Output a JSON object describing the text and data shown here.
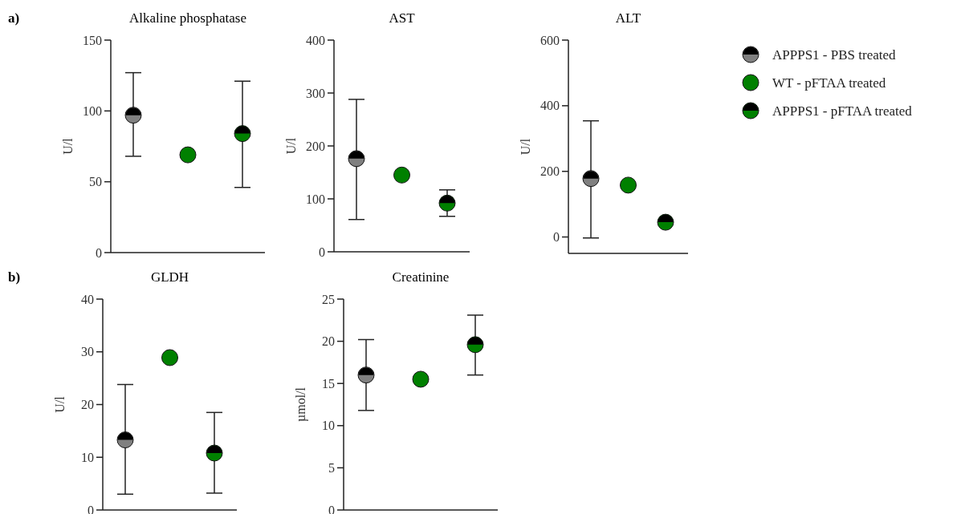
{
  "chart_data": [
    {
      "type": "scatter",
      "title": "Alkaline phosphatase",
      "ylabel": "U/l",
      "annotations": [
        "a)"
      ],
      "categories": [
        null,
        null,
        null
      ],
      "ylim": [
        0,
        150
      ],
      "yticks": [
        0,
        50,
        100,
        150
      ],
      "marker": "circle",
      "legend": false,
      "series": [
        {
          "color": "#808080",
          "values": [
            97,
            null,
            null
          ],
          "errors": [
            [
              68,
              127
            ],
            null,
            null
          ]
        },
        {
          "color": "#008000",
          "values": [
            null,
            69,
            null
          ]
        },
        {
          "color": "#008000",
          "values": [
            null,
            null,
            84
          ],
          "errors": [
            null,
            null,
            [
              46,
              121
            ]
          ]
        }
      ]
    },
    {
      "type": "scatter",
      "title": "AST",
      "ylabel": "U/l",
      "categories": [
        null,
        null,
        null
      ],
      "ylim": [
        0,
        400
      ],
      "yticks": [
        0,
        100,
        200,
        300,
        400
      ],
      "marker": "circle",
      "legend": false,
      "series": [
        {
          "color": "#808080",
          "values": [
            176,
            null,
            null
          ],
          "errors": [
            [
              61,
              288
            ],
            null,
            null
          ]
        },
        {
          "color": "#008000",
          "values": [
            null,
            145,
            null
          ]
        },
        {
          "color": "#008000",
          "values": [
            null,
            null,
            92
          ],
          "errors": [
            null,
            null,
            [
              67,
              117
            ]
          ]
        }
      ]
    },
    {
      "type": "scatter",
      "title": "ALT",
      "ylabel": "U/l",
      "categories": [
        null,
        null,
        null
      ],
      "ylim": [
        -50,
        600
      ],
      "yticks": [
        0,
        200,
        400,
        600
      ],
      "marker": "circle",
      "legend": "right",
      "series": [
        {
          "name": "APPPS1 - PBS treated",
          "color": "#808080",
          "values": [
            178,
            null,
            null
          ],
          "errors": [
            [
              -3,
              354
            ],
            null,
            null
          ]
        },
        {
          "name": "WT - pFTAA treated",
          "color": "#008000",
          "values": [
            null,
            158,
            null
          ]
        },
        {
          "name": "APPPS1 - pFTAA treated",
          "color": "#008000",
          "values": [
            null,
            null,
            45
          ]
        }
      ]
    },
    {
      "type": "scatter",
      "title": "GLDH",
      "ylabel": "U/l",
      "annotations": [
        "b)"
      ],
      "categories": [
        null,
        null,
        null
      ],
      "ylim": [
        0,
        40
      ],
      "yticks": [
        0,
        10,
        20,
        30,
        40
      ],
      "marker": "circle",
      "legend": false,
      "series": [
        {
          "color": "#808080",
          "values": [
            13.3,
            null,
            null
          ],
          "errors": [
            [
              3.0,
              23.8
            ],
            null,
            null
          ]
        },
        {
          "color": "#008000",
          "values": [
            null,
            28.9,
            null
          ]
        },
        {
          "color": "#008000",
          "values": [
            null,
            null,
            10.8
          ],
          "errors": [
            null,
            null,
            [
              3.2,
              18.5
            ]
          ]
        }
      ]
    },
    {
      "type": "scatter",
      "title": "Creatinine",
      "ylabel": "µmol/l",
      "categories": [
        null,
        null,
        null
      ],
      "ylim": [
        0,
        25
      ],
      "yticks": [
        0,
        5,
        10,
        15,
        20,
        25
      ],
      "marker": "circle",
      "legend": false,
      "series": [
        {
          "color": "#808080",
          "values": [
            16.0,
            null,
            null
          ],
          "errors": [
            [
              11.8,
              20.2
            ],
            null,
            null
          ]
        },
        {
          "color": "#008000",
          "values": [
            null,
            15.5,
            null
          ]
        },
        {
          "color": "#008000",
          "values": [
            null,
            null,
            19.6
          ],
          "errors": [
            null,
            null,
            [
              16.0,
              23.1
            ]
          ]
        }
      ]
    }
  ]
}
